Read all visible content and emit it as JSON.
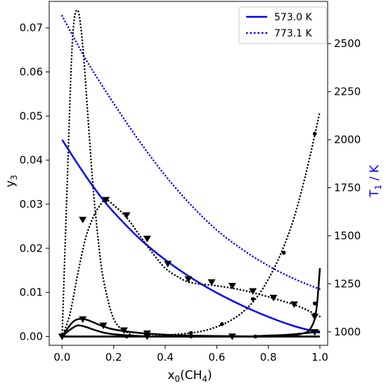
{
  "chart_data": {
    "type": "line",
    "xlabel": "x0(CH4)",
    "ylabel_left": "y3",
    "ylabel_right": "T1 / K",
    "xlim": [
      -0.05,
      1.03
    ],
    "ylim_left": [
      -0.002,
      0.076
    ],
    "ylim_right": [
      930,
      2720
    ],
    "x_ticks": [
      0.0,
      0.2,
      0.4,
      0.6,
      0.8,
      1.0
    ],
    "x_tick_labels": [
      "0.0",
      "0.2",
      "0.4",
      "0.6",
      "0.8",
      "1.0"
    ],
    "y_left_ticks": [
      0.0,
      0.01,
      0.02,
      0.03,
      0.04,
      0.05,
      0.06,
      0.07
    ],
    "y_left_tick_labels": [
      "0.00",
      "0.01",
      "0.02",
      "0.03",
      "0.04",
      "0.05",
      "0.06",
      "0.07"
    ],
    "y_right_ticks": [
      1000,
      1250,
      1500,
      1750,
      2000,
      2250,
      2500
    ],
    "y_right_tick_labels": [
      "1000",
      "1250",
      "1500",
      "1750",
      "2000",
      "2250",
      "2500"
    ],
    "grid": false,
    "legend": {
      "placement": "top-right",
      "entries": [
        {
          "label": "573.0 K",
          "style": "solid",
          "color": "#0000ff"
        },
        {
          "label": "773.1 K",
          "style": "dotted",
          "color": "#0000ff"
        }
      ]
    },
    "temperature_series": [
      {
        "name": "573.0 K",
        "axis": "right",
        "color": "#0000ff",
        "style": "solid",
        "x": [
          0.0,
          0.05,
          0.1,
          0.15,
          0.2,
          0.3,
          0.4,
          0.5,
          0.6,
          0.7,
          0.8,
          0.9,
          1.0
        ],
        "values": [
          2000,
          1895,
          1795,
          1703,
          1623,
          1486,
          1375,
          1282,
          1203,
          1136,
          1078,
          1030,
          995
        ]
      },
      {
        "name": "773.1 K",
        "axis": "right",
        "color": "#0000ff",
        "style": "dotted",
        "x": [
          0.0,
          0.05,
          0.1,
          0.15,
          0.2,
          0.3,
          0.4,
          0.5,
          0.6,
          0.7,
          0.8,
          0.9,
          1.0
        ],
        "values": [
          2645,
          2520,
          2400,
          2293,
          2189,
          1992,
          1814,
          1660,
          1530,
          1428,
          1344,
          1276,
          1222
        ]
      }
    ],
    "composition_series": [
      {
        "axis": "left",
        "color": "#000000",
        "style": "dotted",
        "marker": "none",
        "x": [
          0.0,
          0.02,
          0.04,
          0.06,
          0.08,
          0.1,
          0.12,
          0.14,
          0.16,
          0.2,
          0.25,
          0.3,
          0.4,
          0.5,
          1.0
        ],
        "values": [
          0.0,
          0.035,
          0.067,
          0.074,
          0.066,
          0.05,
          0.034,
          0.022,
          0.013,
          0.004,
          0.001,
          0.0,
          0.0,
          0.0,
          0.0
        ]
      },
      {
        "axis": "left",
        "color": "#000000",
        "style": "dotted",
        "marker": "triangle-down",
        "x": [
          0.0,
          0.03,
          0.06,
          0.09,
          0.12,
          0.15,
          0.17,
          0.2,
          0.25,
          0.3,
          0.35,
          0.4,
          0.45,
          0.5,
          0.6,
          0.7,
          0.8,
          0.9,
          0.95,
          1.0
        ],
        "values": [
          0.0,
          0.005,
          0.014,
          0.022,
          0.027,
          0.03,
          0.031,
          0.0298,
          0.027,
          0.023,
          0.019,
          0.0155,
          0.0135,
          0.0122,
          0.0115,
          0.0105,
          0.009,
          0.0072,
          0.006,
          0.0045
        ],
        "marker_x": [
          0.08,
          0.17,
          0.25,
          0.33,
          0.41,
          0.49,
          0.58,
          0.66,
          0.74,
          0.82,
          0.9,
          0.98
        ],
        "marker_values": [
          0.0265,
          0.031,
          0.0275,
          0.0222,
          0.0165,
          0.013,
          0.0123,
          0.0115,
          0.0103,
          0.0088,
          0.0073,
          0.0045
        ]
      },
      {
        "axis": "left",
        "color": "#000000",
        "style": "dotted",
        "marker": "dot",
        "x": [
          0.0,
          0.05,
          0.1,
          0.2,
          0.3,
          0.4,
          0.5,
          0.55,
          0.6,
          0.65,
          0.7,
          0.75,
          0.8,
          0.85,
          0.9,
          0.95,
          1.0
        ],
        "values": [
          0.0,
          0.0,
          0.0,
          0.0,
          0.0,
          0.0003,
          0.0008,
          0.0013,
          0.0022,
          0.0035,
          0.0055,
          0.0085,
          0.013,
          0.019,
          0.027,
          0.038,
          0.051
        ],
        "marker_x": [
          0.5,
          0.62,
          0.74,
          0.86,
          0.98
        ],
        "marker_values": [
          0.0008,
          0.0028,
          0.0085,
          0.019,
          0.046
        ]
      },
      {
        "axis": "left",
        "color": "#000000",
        "style": "solid",
        "marker": "triangle-down",
        "x": [
          0.0,
          0.04,
          0.07,
          0.1,
          0.15,
          0.2,
          0.3,
          0.4,
          0.5,
          0.6,
          0.8,
          1.0
        ],
        "values": [
          0.0,
          0.0032,
          0.004,
          0.0037,
          0.0025,
          0.0016,
          0.0008,
          0.0004,
          0.0002,
          0.0001,
          0.0,
          0.0
        ],
        "marker_x": [
          0.08,
          0.16,
          0.24,
          0.33
        ],
        "marker_values": [
          0.0039,
          0.0025,
          0.0014,
          0.0007
        ]
      },
      {
        "axis": "left",
        "color": "#000000",
        "style": "solid",
        "marker": "none",
        "x": [
          0.0,
          0.03,
          0.06,
          0.09,
          0.12,
          0.16,
          0.2,
          0.3,
          0.4,
          0.6,
          1.0
        ],
        "values": [
          0.0,
          0.0015,
          0.0025,
          0.0022,
          0.0016,
          0.0009,
          0.0005,
          0.0001,
          0.0,
          0.0,
          0.0
        ]
      },
      {
        "axis": "left",
        "color": "#000000",
        "style": "solid",
        "marker": "triangle-down",
        "x": [
          0.0,
          0.1,
          0.2,
          0.3,
          0.4,
          0.5,
          0.6,
          0.7,
          0.8,
          0.85,
          0.9,
          0.95,
          0.98,
          1.0
        ],
        "values": [
          0.0,
          0.0,
          0.0,
          0.0,
          0.0,
          0.0,
          0.0,
          0.0,
          0.0002,
          0.0003,
          0.0005,
          0.0008,
          0.001,
          0.0012
        ],
        "marker_x": [
          0.0,
          0.33,
          0.66,
          0.98
        ],
        "marker_values": [
          0.0,
          0.0,
          0.0,
          0.001
        ]
      },
      {
        "axis": "left",
        "color": "#000000",
        "style": "solid",
        "marker": "dot",
        "x": [
          0.0,
          0.2,
          0.4,
          0.6,
          0.8,
          0.9,
          0.94,
          0.96,
          0.98,
          0.99,
          1.0
        ],
        "values": [
          0.0,
          0.0,
          0.0,
          0.0,
          0.0,
          0.0003,
          0.0008,
          0.0015,
          0.004,
          0.008,
          0.0155
        ],
        "marker_x": [
          0.25,
          0.5,
          0.75,
          0.98
        ],
        "marker_values": [
          0.0,
          0.0,
          0.0,
          0.0075
        ]
      }
    ]
  }
}
